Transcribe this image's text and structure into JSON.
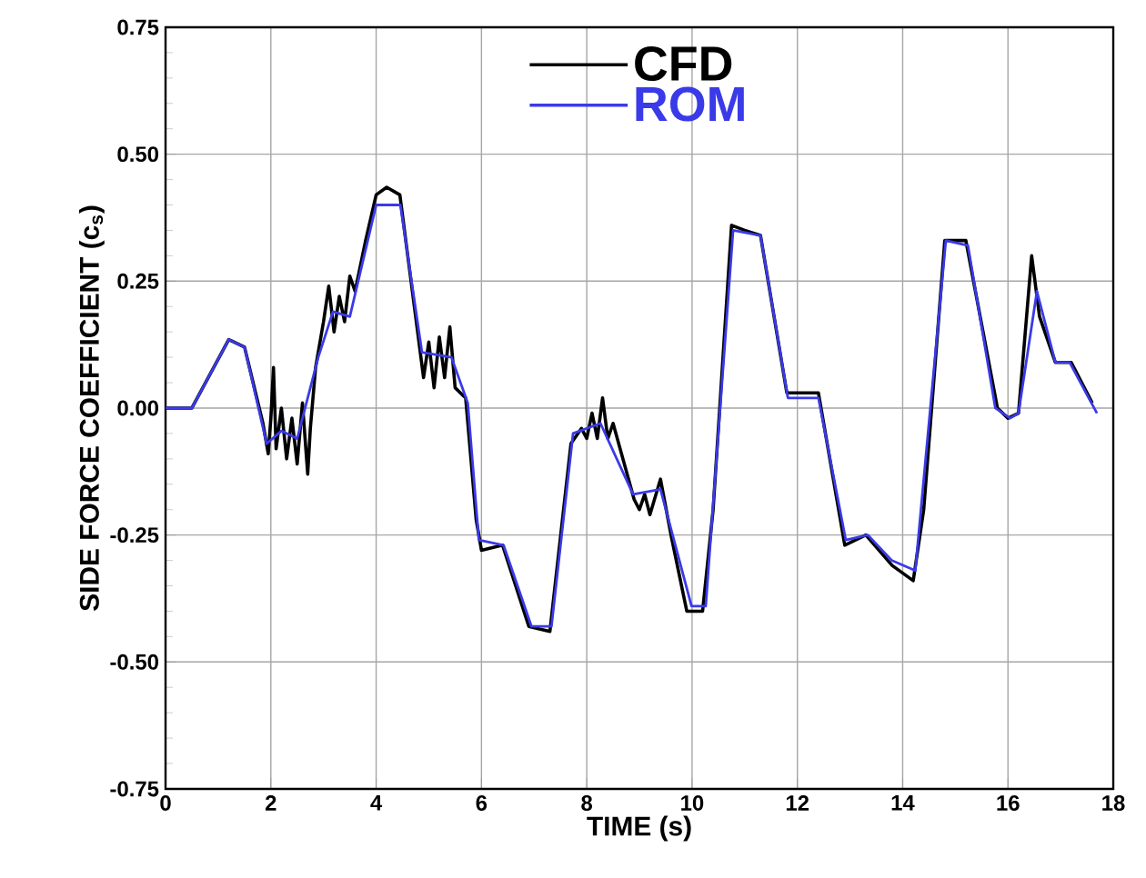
{
  "chart_data": {
    "type": "line",
    "xlabel": "TIME (s)",
    "ylabel": "SIDE FORCE COEFFICIENT (c$_{s}$)",
    "xlim": [
      0,
      18
    ],
    "ylim": [
      -0.75,
      0.75
    ],
    "xticks": [
      0,
      2,
      4,
      6,
      8,
      10,
      12,
      14,
      16,
      18
    ],
    "yticks": [
      {
        "value": -0.75,
        "label": "-0.75"
      },
      {
        "value": -0.5,
        "label": "-0.50"
      },
      {
        "value": -0.25,
        "label": "-0.25"
      },
      {
        "value": 0,
        "label": "0.00"
      },
      {
        "value": 0.25,
        "label": "0.25"
      },
      {
        "value": 0.5,
        "label": "0.50"
      },
      {
        "value": 0.75,
        "label": "0.75"
      }
    ],
    "grid": true,
    "legend": "top",
    "line_style": "solid",
    "marker": "none",
    "series": [
      {
        "name": "CFD",
        "color": "#000000",
        "x": [
          0,
          0.5,
          1.2,
          1.5,
          1.85,
          1.95,
          2.0,
          2.05,
          2.1,
          2.2,
          2.3,
          2.4,
          2.5,
          2.6,
          2.7,
          2.75,
          2.85,
          3.0,
          3.1,
          3.2,
          3.3,
          3.4,
          3.5,
          3.6,
          3.8,
          4.0,
          4.2,
          4.45,
          4.6,
          4.8,
          4.9,
          5.0,
          5.1,
          5.2,
          5.3,
          5.4,
          5.5,
          5.7,
          5.9,
          6.0,
          6.4,
          6.9,
          7.3,
          7.7,
          7.9,
          8.0,
          8.1,
          8.2,
          8.3,
          8.4,
          8.5,
          8.9,
          9.0,
          9.1,
          9.2,
          9.4,
          9.6,
          9.9,
          10.2,
          10.4,
          10.75,
          11.0,
          11.3,
          11.8,
          12.4,
          12.9,
          13.3,
          13.8,
          14.2,
          14.4,
          14.8,
          15.2,
          15.8,
          16.0,
          16.2,
          16.45,
          16.6,
          16.9,
          17.2,
          17.6
        ],
        "values": [
          0,
          0,
          0.135,
          0.12,
          -0.03,
          -0.09,
          -0.02,
          0.08,
          -0.08,
          0.0,
          -0.1,
          -0.02,
          -0.11,
          0.01,
          -0.13,
          -0.04,
          0.08,
          0.17,
          0.24,
          0.15,
          0.22,
          0.17,
          0.26,
          0.23,
          0.33,
          0.42,
          0.435,
          0.42,
          0.3,
          0.14,
          0.06,
          0.13,
          0.04,
          0.14,
          0.06,
          0.16,
          0.04,
          0.02,
          -0.22,
          -0.28,
          -0.27,
          -0.43,
          -0.44,
          -0.07,
          -0.04,
          -0.06,
          -0.01,
          -0.06,
          0.02,
          -0.06,
          -0.03,
          -0.18,
          -0.2,
          -0.17,
          -0.21,
          -0.14,
          -0.25,
          -0.4,
          -0.4,
          -0.2,
          0.36,
          0.35,
          0.34,
          0.03,
          0.03,
          -0.27,
          -0.25,
          -0.31,
          -0.34,
          -0.2,
          0.33,
          0.33,
          0.0,
          -0.02,
          -0.01,
          0.3,
          0.18,
          0.09,
          0.09,
          0.01
        ]
      },
      {
        "name": "ROM",
        "color": "#3a3ae8",
        "x": [
          0,
          0.5,
          1.2,
          1.5,
          1.92,
          2.2,
          2.5,
          2.9,
          3.18,
          3.5,
          4.0,
          4.46,
          4.87,
          5.43,
          5.74,
          5.95,
          6.42,
          6.95,
          7.33,
          7.74,
          8.26,
          8.88,
          9.4,
          9.99,
          10.26,
          10.78,
          11.3,
          11.82,
          12.4,
          12.92,
          13.34,
          13.79,
          14.24,
          14.82,
          15.24,
          15.76,
          16.04,
          16.2,
          16.55,
          16.9,
          17.17,
          17.69
        ],
        "values": [
          0,
          0,
          0.135,
          0.12,
          -0.07,
          -0.045,
          -0.06,
          0.1,
          0.19,
          0.18,
          0.4,
          0.4,
          0.11,
          0.1,
          0.01,
          -0.26,
          -0.27,
          -0.43,
          -0.43,
          -0.05,
          -0.03,
          -0.17,
          -0.16,
          -0.39,
          -0.39,
          0.35,
          0.34,
          0.02,
          0.02,
          -0.26,
          -0.25,
          -0.3,
          -0.32,
          0.33,
          0.32,
          0.0,
          -0.02,
          -0.01,
          0.23,
          0.09,
          0.09,
          -0.01
        ]
      }
    ]
  }
}
